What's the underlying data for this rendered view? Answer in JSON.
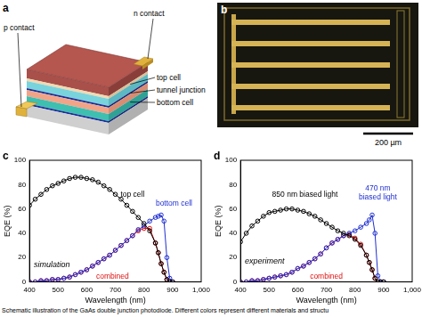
{
  "figure": {
    "panel_a": {
      "label": "a",
      "p_contact": "p contact",
      "n_contact": "n contact",
      "top_cell": "top cell",
      "tunnel_junction": "tunnel junction",
      "bottom_cell": "bottom cell"
    },
    "panel_b": {
      "label": "b",
      "scale_bar": "200 µm"
    },
    "caption": "Schematic illustration of the GaAs double junction photodiode. Different colors represent different materials and structu"
  },
  "chart_data": [
    {
      "type": "line",
      "title": "c",
      "annotations": [
        "simulation"
      ],
      "x_label": "Wavelength (nm)",
      "y_label": "EQE (%)",
      "x": [
        400,
        420,
        440,
        460,
        480,
        500,
        520,
        540,
        560,
        580,
        600,
        620,
        640,
        660,
        680,
        700,
        720,
        740,
        760,
        780,
        800,
        820,
        840,
        850,
        860,
        870,
        880,
        890,
        900
      ],
      "series": [
        {
          "name": "top cell",
          "color": "#000000",
          "marker": "open_circle",
          "values": [
            63,
            68,
            72,
            76,
            79,
            81,
            83,
            85,
            86,
            86,
            85,
            84,
            82,
            79,
            76,
            72,
            68,
            63,
            58,
            53,
            48,
            42,
            32,
            24,
            15,
            8,
            2,
            0,
            0
          ]
        },
        {
          "name": "bottom cell",
          "color": "#1f2fd0",
          "marker": "open_circle",
          "values": [
            0,
            0,
            1,
            1,
            2,
            2,
            3,
            4,
            6,
            8,
            10,
            13,
            16,
            19,
            22,
            26,
            30,
            34,
            38,
            43,
            46,
            50,
            53,
            54,
            55,
            50,
            20,
            3,
            0
          ]
        },
        {
          "name": "combined",
          "color": "#e01010",
          "marker": "open_circle",
          "values": [
            0,
            0,
            1,
            1,
            2,
            2,
            3,
            4,
            6,
            8,
            10,
            13,
            16,
            19,
            22,
            26,
            30,
            34,
            38,
            42,
            44,
            44,
            32,
            24,
            15,
            8,
            2,
            0,
            0
          ]
        }
      ],
      "xlim": [
        400,
        1000
      ],
      "xticks": [
        400,
        500,
        600,
        700,
        800,
        900,
        1000
      ],
      "ylim": [
        0,
        100
      ],
      "yticks": [
        0,
        20,
        40,
        60,
        80,
        100
      ],
      "grid": false
    },
    {
      "type": "line",
      "title": "d",
      "annotations": [
        "experiment"
      ],
      "x_label": "Wavelength (nm)",
      "y_label": "EQE (%)",
      "x": [
        400,
        420,
        440,
        460,
        480,
        500,
        520,
        540,
        560,
        580,
        600,
        620,
        640,
        660,
        680,
        700,
        720,
        740,
        760,
        780,
        800,
        820,
        840,
        850,
        860,
        870,
        880,
        890,
        900
      ],
      "series": [
        {
          "name": "850 nm biased light",
          "color": "#000000",
          "marker": "open_circle",
          "values": [
            33,
            40,
            46,
            50,
            54,
            57,
            58,
            59,
            60,
            60,
            59,
            58,
            56,
            54,
            51,
            48,
            45,
            42,
            40,
            38,
            35,
            30,
            22,
            16,
            10,
            3,
            0,
            0,
            0
          ]
        },
        {
          "name": "470 nm biased light",
          "color": "#1f2fd0",
          "marker": "open_circle",
          "values": [
            0,
            0,
            1,
            1,
            2,
            3,
            4,
            5,
            6,
            8,
            11,
            13,
            16,
            19,
            23,
            28,
            32,
            35,
            38,
            40,
            42,
            45,
            48,
            51,
            55,
            40,
            5,
            0,
            0
          ]
        },
        {
          "name": "combined",
          "color": "#e01010",
          "marker": "open_circle",
          "values": [
            0,
            0,
            1,
            1,
            2,
            3,
            4,
            5,
            6,
            8,
            11,
            13,
            16,
            19,
            23,
            28,
            32,
            35,
            38,
            39,
            36,
            31,
            22,
            16,
            10,
            3,
            0,
            0,
            0
          ]
        }
      ],
      "xlim": [
        400,
        1000
      ],
      "xticks": [
        400,
        500,
        600,
        700,
        800,
        900,
        1000
      ],
      "ylim": [
        0,
        100
      ],
      "yticks": [
        0,
        20,
        40,
        60,
        80,
        100
      ],
      "grid": false
    }
  ]
}
